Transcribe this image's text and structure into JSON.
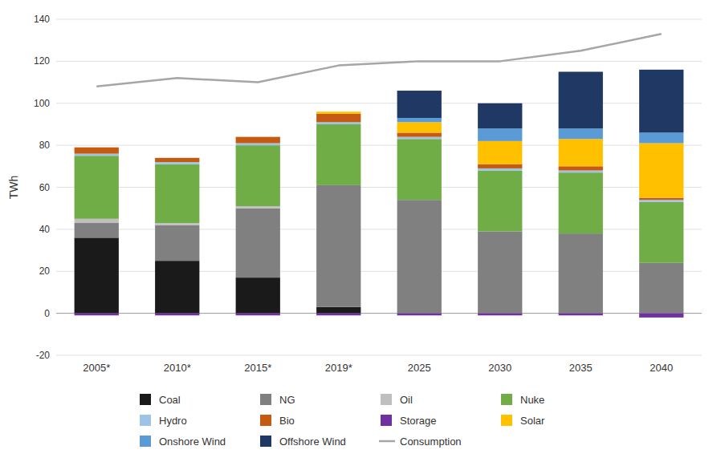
{
  "chart_data": {
    "type": "bar",
    "stacked": true,
    "ylabel": "TWh",
    "categories": [
      "2005*",
      "2010*",
      "2015*",
      "2019*",
      "2025",
      "2030",
      "2035",
      "2040"
    ],
    "series": [
      {
        "name": "Coal",
        "color": "#1a1a1a",
        "values": [
          36,
          25,
          17,
          3,
          0,
          0,
          0,
          0
        ]
      },
      {
        "name": "NG",
        "color": "#808080",
        "values": [
          7,
          17,
          33,
          58,
          54,
          39,
          38,
          24
        ]
      },
      {
        "name": "Oil",
        "color": "#bfbfbf",
        "values": [
          2,
          1,
          1,
          0,
          0,
          0,
          0,
          0
        ]
      },
      {
        "name": "Nuke",
        "color": "#70ad47",
        "values": [
          30,
          28,
          29,
          29,
          29,
          29,
          29,
          29
        ]
      },
      {
        "name": "Hydro",
        "color": "#9dc3e6",
        "values": [
          1,
          1,
          1,
          1,
          1,
          1,
          1,
          1
        ]
      },
      {
        "name": "Bio",
        "color": "#c55a11",
        "values": [
          3,
          2,
          3,
          4,
          2,
          2,
          2,
          1
        ]
      },
      {
        "name": "Storage",
        "color": "#7030a0",
        "values": [
          -1,
          -1,
          -1,
          -1,
          -1,
          -1,
          -1,
          -2
        ]
      },
      {
        "name": "Solar",
        "color": "#ffc000",
        "values": [
          0,
          0,
          0,
          1,
          5,
          11,
          13,
          26
        ]
      },
      {
        "name": "Onshore Wind",
        "color": "#5b9bd5",
        "values": [
          0,
          0,
          0,
          0,
          2,
          6,
          5,
          5
        ]
      },
      {
        "name": "Offshore Wind",
        "color": "#1f3864",
        "values": [
          0,
          0,
          0,
          0,
          13,
          12,
          27,
          30
        ]
      },
      {
        "name": "Consumption",
        "type": "line",
        "color": "#a6a6a6",
        "values": [
          108,
          112,
          110,
          118,
          120,
          120,
          125,
          133
        ]
      }
    ],
    "ylim": [
      -20,
      140
    ],
    "yticks": [
      -20,
      0,
      20,
      40,
      60,
      80,
      100,
      120,
      140
    ],
    "grid": true,
    "legend": "bottom"
  }
}
